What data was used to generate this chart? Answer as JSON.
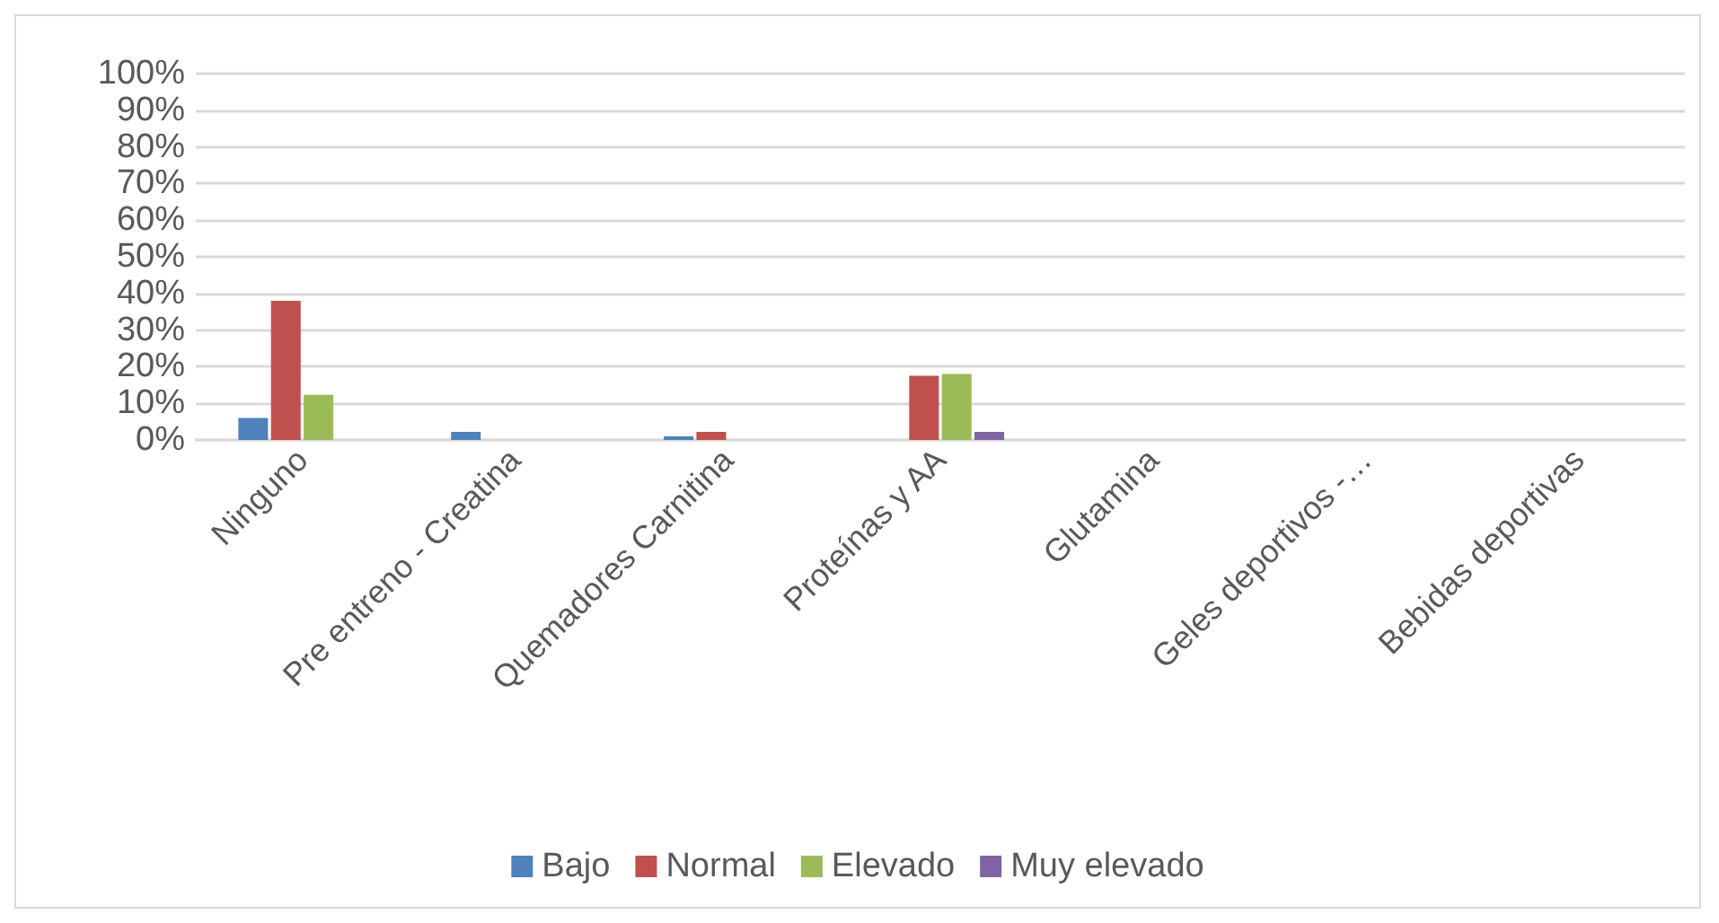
{
  "chart_data": {
    "type": "bar",
    "categories": [
      "Ninguno",
      "Pre entreno - Creatina",
      "Quemadores Carnitina",
      "Proteínas y AA",
      "Glutamina",
      "Geles deportivos -…",
      "Bebidas deportivas"
    ],
    "series": [
      {
        "name": "Bajo",
        "color": "#4f81bd",
        "values": [
          6,
          2.2,
          1,
          0,
          0,
          0,
          0
        ]
      },
      {
        "name": "Normal",
        "color": "#c0504d",
        "values": [
          38,
          0,
          2.2,
          17.5,
          0,
          0,
          0
        ]
      },
      {
        "name": "Elevado",
        "color": "#9bbb59",
        "values": [
          12.3,
          0,
          0,
          18,
          0,
          0,
          0
        ]
      },
      {
        "name": "Muy elevado",
        "color": "#8064a2",
        "values": [
          0,
          0,
          0,
          2.2,
          0,
          0,
          0
        ]
      }
    ],
    "ylim": [
      0,
      100
    ],
    "yticks": [
      {
        "value": 0,
        "label": "0%"
      },
      {
        "value": 10,
        "label": "10%"
      },
      {
        "value": 20,
        "label": "20%"
      },
      {
        "value": 30,
        "label": "30%"
      },
      {
        "value": 40,
        "label": "40%"
      },
      {
        "value": 50,
        "label": "50%"
      },
      {
        "value": 60,
        "label": "60%"
      },
      {
        "value": 70,
        "label": "70%"
      },
      {
        "value": 80,
        "label": "80%"
      },
      {
        "value": 90,
        "label": "90%"
      },
      {
        "value": 100,
        "label": "100%"
      }
    ],
    "grid": "y",
    "legend": "bottom"
  }
}
